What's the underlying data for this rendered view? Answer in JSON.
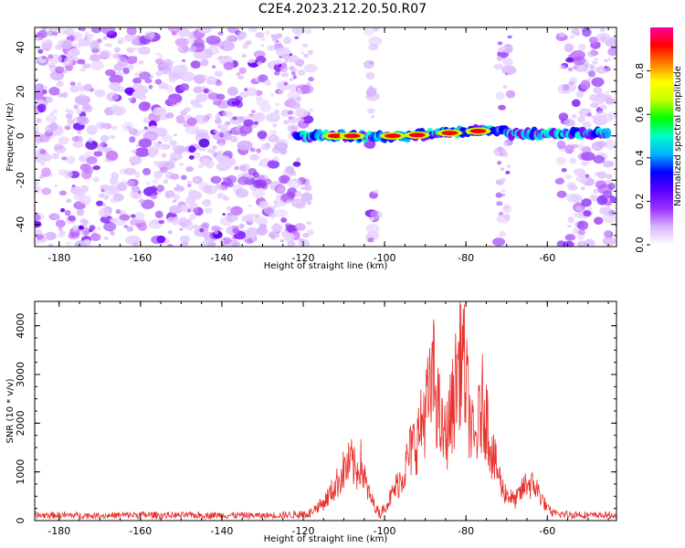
{
  "title": "C2E4.2023.212.20.50.R07",
  "chart_data": [
    {
      "type": "heatmap",
      "title": "C2E4.2023.212.20.50.R07",
      "xlabel": "Height of straight line (km)",
      "ylabel": "Frequency (Hz)",
      "xlim": [
        -186,
        -43
      ],
      "ylim": [
        -50,
        49
      ],
      "x_ticks": [
        -180,
        -160,
        -140,
        -120,
        -100,
        -80,
        -60
      ],
      "y_ticks": [
        -40,
        -20,
        0,
        20,
        40
      ],
      "grid": false,
      "colorbar": {
        "label": "Normalized spectral amplitude",
        "range": [
          0.0,
          1.0
        ],
        "ticks": [
          "0.0",
          "0.2",
          "0.4",
          "0.6",
          "0.8"
        ],
        "colors": [
          "#ffffff",
          "#d8b4fe",
          "#9b30ff",
          "#5a00ff",
          "#0000ff",
          "#00b4ff",
          "#00ffc8",
          "#00ff00",
          "#c8ff00",
          "#ffff00",
          "#ff8000",
          "#ff0000",
          "#ff00a0"
        ]
      },
      "noise_regions_km": [
        [
          -186,
          -118
        ],
        [
          -72,
          -69
        ],
        [
          -57,
          -44
        ],
        [
          -104,
          -102
        ]
      ],
      "signal_band": {
        "frequency_hz": 0,
        "x_range_km": [
          -122,
          -45
        ],
        "peaks_km": [
          -112,
          -108,
          -98,
          -92,
          -84,
          -77
        ]
      }
    },
    {
      "type": "line",
      "xlabel": "Height of straight line (km)",
      "ylabel": "SNR (10 * v/v)",
      "xlim": [
        -186,
        -43
      ],
      "ylim": [
        0,
        4500
      ],
      "x_ticks": [
        -180,
        -160,
        -140,
        -120,
        -100,
        -80,
        -60
      ],
      "y_ticks": [
        0,
        1000,
        2000,
        3000,
        4000
      ],
      "grid": false,
      "color": "#e8312d",
      "x": [
        -186,
        -180,
        -170,
        -160,
        -150,
        -140,
        -130,
        -122,
        -118,
        -115,
        -112,
        -110,
        -108,
        -107,
        -106,
        -105,
        -104,
        -103,
        -102,
        -101,
        -100,
        -99,
        -98,
        -97,
        -96,
        -95,
        -94,
        -93,
        -92,
        -91,
        -90,
        -89,
        -88,
        -87,
        -86,
        -85,
        -84,
        -83,
        -82,
        -81,
        -80,
        -79,
        -78,
        -77,
        -76,
        -75,
        -74,
        -73,
        -72,
        -71,
        -70,
        -69,
        -68,
        -67,
        -66,
        -65,
        -64,
        -63,
        -62,
        -61,
        -60,
        -58,
        -56,
        -54,
        -52,
        -50,
        -48,
        -46,
        -43
      ],
      "y": [
        150,
        160,
        140,
        170,
        150,
        160,
        140,
        180,
        250,
        450,
        900,
        1300,
        1500,
        1200,
        1550,
        1100,
        700,
        500,
        300,
        200,
        350,
        500,
        700,
        900,
        1100,
        1300,
        1700,
        1900,
        2100,
        2400,
        2900,
        3100,
        3700,
        3000,
        2300,
        2100,
        2600,
        3100,
        3900,
        4500,
        3500,
        2600,
        1900,
        2400,
        3000,
        2700,
        2000,
        1500,
        1200,
        800,
        700,
        600,
        500,
        650,
        800,
        1000,
        900,
        900,
        700,
        500,
        300,
        200,
        200,
        180,
        200,
        150,
        150,
        160,
        140
      ]
    }
  ]
}
